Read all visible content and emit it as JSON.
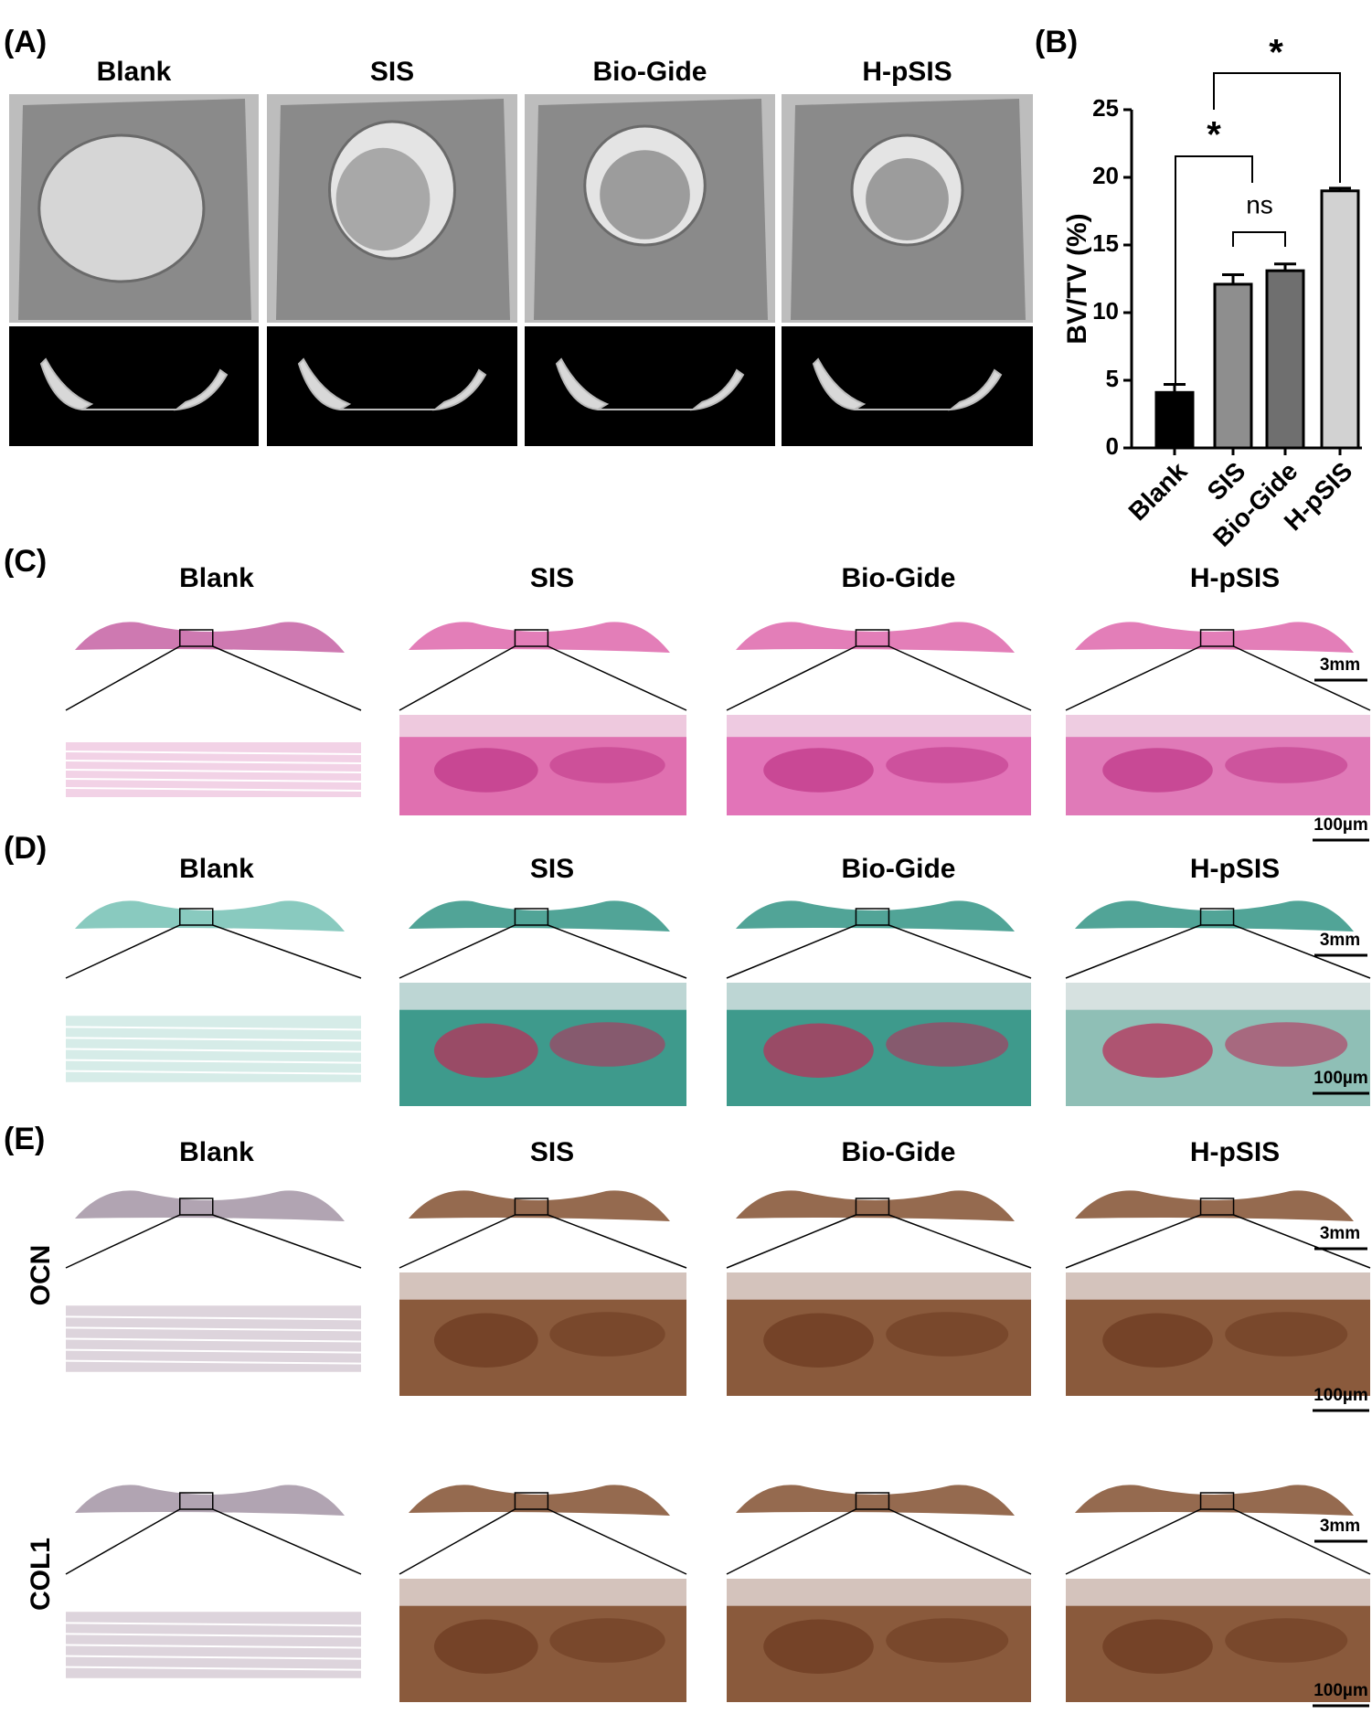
{
  "panels": {
    "A": {
      "label": "(A)",
      "columns": [
        "Blank",
        "SIS",
        "Bio-Gide",
        "H-pSIS"
      ]
    },
    "B": {
      "label": "(B)"
    },
    "C": {
      "label": "(C)",
      "columns": [
        "Blank",
        "SIS",
        "Bio-Gide",
        "H-pSIS"
      ],
      "scale_bars": [
        "3mm",
        "100µm"
      ]
    },
    "D": {
      "label": "(D)",
      "columns": [
        "Blank",
        "SIS",
        "Bio-Gide",
        "H-pSIS"
      ],
      "scale_bars": [
        "3mm",
        "100µm"
      ]
    },
    "E": {
      "label": "(E)",
      "columns": [
        "Blank",
        "SIS",
        "Bio-Gide",
        "H-pSIS"
      ],
      "rows": [
        {
          "name": "OCN",
          "scale_bars": [
            "3mm",
            "100µm"
          ]
        },
        {
          "name": "COL1",
          "scale_bars": [
            "3mm",
            "100µm"
          ]
        }
      ]
    }
  },
  "chart_data": {
    "type": "bar",
    "y_label": "BV/TV (%)",
    "categories": [
      "Blank",
      "SIS",
      "Bio-Gide",
      "H-pSIS"
    ],
    "values": [
      4.1,
      12.1,
      13.1,
      19.0
    ],
    "errors": [
      0.6,
      0.7,
      0.5,
      0.2
    ],
    "colors": [
      "#000000",
      "#8e8e8e",
      "#6f6f6f",
      "#d2d2d2"
    ],
    "ylim": [
      0,
      25
    ],
    "yticks": [
      0,
      5,
      10,
      15,
      20,
      25
    ],
    "annotations": [
      "*",
      "*",
      "ns"
    ]
  }
}
